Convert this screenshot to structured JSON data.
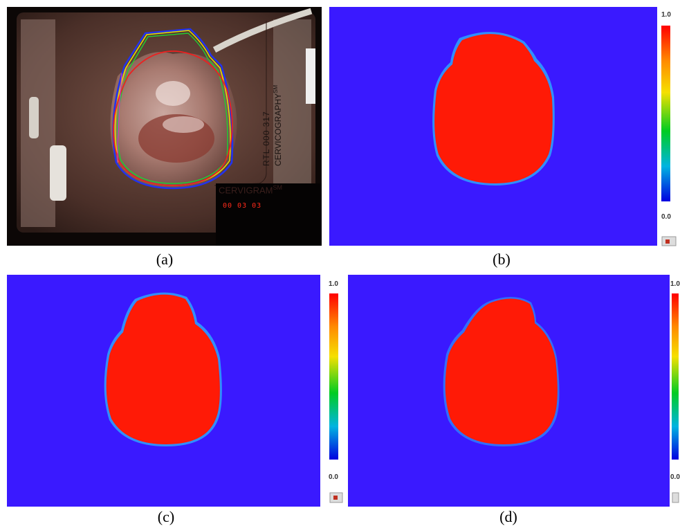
{
  "panels": [
    {
      "caption": "(a)"
    },
    {
      "caption": "(b)",
      "scale_max": "1.0",
      "scale_min": "0.0"
    },
    {
      "caption": "(c)",
      "scale_max": "1.0",
      "scale_min": "0.0"
    },
    {
      "caption": "(d)",
      "scale_max": "1.0",
      "scale_min": "0.0"
    }
  ],
  "photo_overlay": {
    "side_text_1": "RTL  000 317",
    "side_text_2": "CERVICOGRAPHY",
    "side_text_sup": "SM",
    "brand": "CERVIGRAM",
    "brand_sup": "SM",
    "counter": "00 03 03"
  },
  "colors": {
    "background_blue": "#3a19ff",
    "region_red": "#ff1a06",
    "edge_blue": "#2f8fff",
    "contour_blue": "#2233ee",
    "contour_yellow": "#e8e000",
    "contour_green": "#22cc33",
    "contour_red": "#ee2020",
    "contour_magenta": "#cc33cc"
  }
}
